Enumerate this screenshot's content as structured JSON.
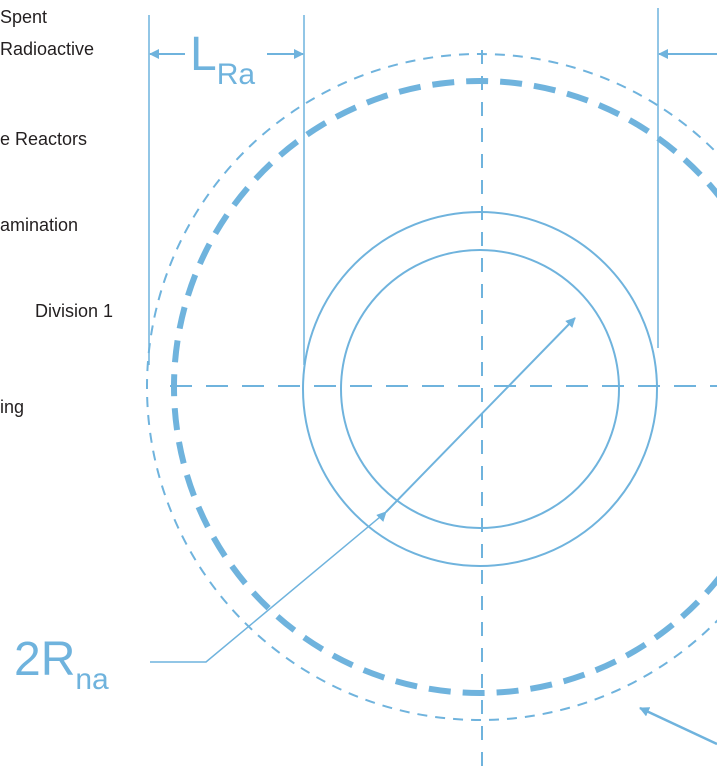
{
  "text_lines": [
    "Spent",
    "Radioactive",
    "e Reactors",
    "amination",
    "Division 1",
    "ing"
  ],
  "labels": {
    "length_main": "L",
    "length_sub": "Ra",
    "radius_main": "2R",
    "radius_sub": "na"
  },
  "colors": {
    "diagram": "#6fb3dd",
    "text": "#231f20"
  }
}
